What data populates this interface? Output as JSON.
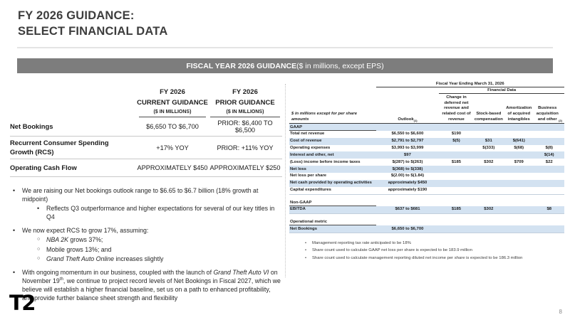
{
  "slide": {
    "title_line1": "FY 2026 GUIDANCE:",
    "title_line2": "SELECT FINANCIAL DATA",
    "logo_text": "T2",
    "page_number": "8"
  },
  "colors": {
    "banner_bg": "#7d7d7d",
    "row_stripe": "#d3e2f1"
  },
  "banner": {
    "bold": "FISCAL YEAR 2026 GUIDANCE",
    "rest": " ($ in millions, except EPS)"
  },
  "guidance": {
    "columns": [
      {
        "line1": "FY 2026",
        "line2": "CURRENT GUIDANCE",
        "line3": "($ IN MILLIONS)"
      },
      {
        "line1": "FY 2026",
        "line2": "PRIOR GUIDANCE",
        "line3": "($ IN MILLIONS)"
      }
    ],
    "rows": [
      {
        "label": "Net Bookings",
        "current": "$6,650 TO $6,700",
        "prior": "PRIOR: $6,400 TO $6,500"
      },
      {
        "label": "Recurrent Consumer Spending Growth (RCS)",
        "current": "+17% YOY",
        "prior": "PRIOR: +11% YOY"
      },
      {
        "label": "Operating Cash Flow",
        "current": "APPROXIMATELY $450",
        "prior": "APPROXIMATELY $250"
      }
    ]
  },
  "bullets": [
    {
      "level": 1,
      "marker": "dot",
      "runs": [
        {
          "t": "We are raising our Net bookings outlook range to $6.65 to $6.7 billion (18% growth at midpoint)"
        }
      ]
    },
    {
      "level": 2,
      "marker": "dot",
      "runs": [
        {
          "t": "Reflects Q3 outperformance and higher expectations for several of our key titles in Q4"
        }
      ]
    },
    {
      "level": 1,
      "marker": "dot",
      "runs": [
        {
          "t": "We now expect RCS to grow 17%, assuming:"
        }
      ]
    },
    {
      "level": 2,
      "marker": "circle",
      "runs": [
        {
          "t": "NBA 2K",
          "i": true
        },
        {
          "t": " grows 37%;"
        }
      ]
    },
    {
      "level": 2,
      "marker": "circle",
      "runs": [
        {
          "t": "Mobile grows 13%; and"
        }
      ]
    },
    {
      "level": 2,
      "marker": "circle",
      "runs": [
        {
          "t": "Grand Theft Auto Online",
          "i": true
        },
        {
          "t": " increases slightly"
        }
      ]
    },
    {
      "level": 1,
      "marker": "dot",
      "runs": [
        {
          "t": "With ongoing momentum in our business, coupled with the launch of "
        },
        {
          "t": "Grand Theft Auto VI",
          "i": true
        },
        {
          "t": " on November 19"
        },
        {
          "t": "th",
          "sup": true
        },
        {
          "t": ", we continue to project record levels of Net Bookings in Fiscal 2027, which we believe will establish a higher financial baseline, set us on a path to enhanced profitability, and provide further balance sheet strength and flexibility"
        }
      ]
    }
  ],
  "financial_table": {
    "period_header": "Fiscal Year Ending March 31, 2026",
    "group_header": "Financial Data",
    "row_label_header": "$ in millions except for per share amounts",
    "columns": [
      {
        "text": "Outlook",
        "sup": "(1)"
      },
      {
        "text": "Change in deferred net revenue and related cost of revenue"
      },
      {
        "text": "Stock-based compensation"
      },
      {
        "text": "Amortization of acquired intangibles"
      },
      {
        "text": "Business acquisition and other",
        "sup": "(2)"
      }
    ],
    "sections": [
      {
        "name": "GAAP",
        "band": true,
        "rows": [
          {
            "label": "Total net revenue",
            "values": [
              "$6,550 to $6,600",
              "$190",
              "",
              "",
              ""
            ]
          },
          {
            "label": "Cost of revenue",
            "values": [
              "$2,791 to $2,797",
              "$(5)",
              "$31",
              "$(641)",
              ""
            ]
          },
          {
            "label": "Operating expenses",
            "values": [
              "$3,993 to $3,999",
              "",
              "$(333)",
              "$(68)",
              "$(8)"
            ]
          },
          {
            "label": "Interest and other, net",
            "values": [
              "$97",
              "",
              "",
              "",
              "$(14)"
            ]
          },
          {
            "label": "(Loss) income before income taxes",
            "values": [
              "$(287) to $(263)",
              "$185",
              "$302",
              "$709",
              "$22"
            ]
          },
          {
            "label": "Net loss",
            "values": [
              "$(368) to $(338)",
              "",
              "",
              "",
              ""
            ]
          },
          {
            "label": "Net loss per share",
            "values": [
              "$(2.00) to $(1.84)",
              "",
              "",
              "",
              ""
            ]
          },
          {
            "label": "Net cash provided by operating activities",
            "values": [
              "approximately $450",
              "",
              "",
              "",
              ""
            ]
          },
          {
            "label": "Capital expenditures",
            "values": [
              "approximately $190",
              "",
              "",
              "",
              ""
            ]
          }
        ]
      },
      {
        "name": "Non-GAAP",
        "band": false,
        "rows": [
          {
            "label": "EBITDA",
            "values": [
              "$637 to $681",
              "$185",
              "$302",
              "",
              "$8"
            ]
          }
        ]
      },
      {
        "name": "Operational metric",
        "band": false,
        "rows": [
          {
            "label": "Net Bookings",
            "values": [
              "$6,650 to $6,700",
              "",
              "",
              "",
              ""
            ]
          }
        ]
      }
    ]
  },
  "footnotes": [
    "Management reporting tax rate anticipated to be 18%",
    "Share count used to calculate GAAP net loss per share is expected to be 183.9 million",
    "Share count used to calculate management reporting diluted net income per share is expected to be 186.3 million"
  ]
}
